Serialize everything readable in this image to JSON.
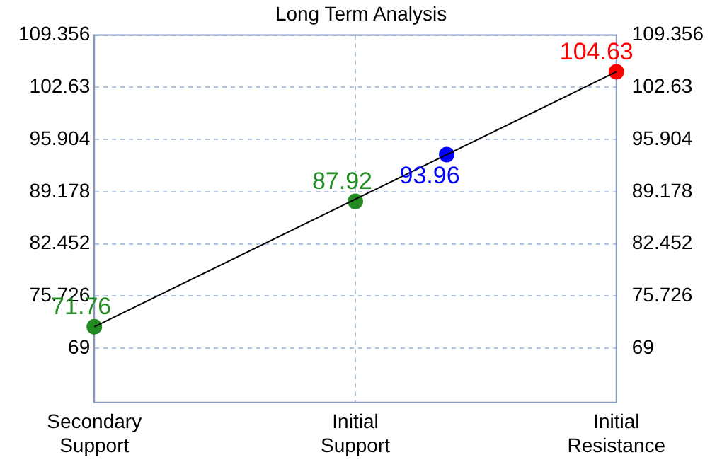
{
  "chart_data": {
    "type": "line",
    "title": "Long Term Analysis",
    "categories": [
      "Secondary Support",
      null,
      null,
      null,
      null,
      null,
      null,
      null,
      null,
      null,
      null,
      null,
      null,
      null,
      null,
      null,
      null,
      null,
      null,
      null,
      "Initial Support",
      null,
      null,
      null,
      null,
      null,
      null,
      null,
      null,
      null,
      null,
      null,
      null,
      null,
      null,
      null,
      null,
      null,
      null,
      null,
      "Initial Resistance"
    ],
    "ylim": [
      62,
      109.356
    ],
    "yticks": [
      69,
      75.726,
      82.452,
      89.178,
      95.904,
      102.63,
      109.356
    ],
    "y2lim": [
      62,
      109.356
    ],
    "y2ticks": [
      69,
      75.726,
      82.452,
      89.178,
      95.904,
      102.63,
      109.356
    ],
    "grid": true,
    "legend": false,
    "series": [
      {
        "color": "#000000",
        "values": [
          71.76,
          null,
          null,
          null,
          null,
          null,
          null,
          null,
          null,
          null,
          null,
          null,
          null,
          null,
          null,
          null,
          null,
          null,
          null,
          null,
          null,
          null,
          null,
          null,
          null,
          null,
          null,
          null,
          null,
          null,
          null,
          null,
          null,
          null,
          null,
          null,
          null,
          null,
          null,
          null,
          104.63
        ],
        "marker": "none",
        "line_style": "solid"
      },
      {
        "type": "scatter",
        "color": "#228b22",
        "values": [
          71.76,
          null,
          null,
          null,
          null,
          null,
          null,
          null,
          null,
          null,
          null,
          null,
          null,
          null,
          null,
          null,
          null,
          null,
          null,
          null,
          87.92,
          null,
          null,
          null,
          null,
          null,
          null,
          null,
          null,
          null,
          null,
          null,
          null,
          null,
          null,
          null,
          null,
          null,
          null,
          null,
          null
        ],
        "marker": "circle",
        "value_labels": [
          "71.76",
          null,
          null,
          null,
          null,
          null,
          null,
          null,
          null,
          null,
          null,
          null,
          null,
          null,
          null,
          null,
          null,
          null,
          null,
          null,
          "87.92",
          null,
          null,
          null,
          null,
          null,
          null,
          null,
          null,
          null,
          null,
          null,
          null,
          null,
          null,
          null,
          null,
          null,
          null,
          null,
          null
        ]
      },
      {
        "type": "scatter",
        "color": "#0000ff",
        "values": [
          null,
          null,
          null,
          null,
          null,
          null,
          null,
          null,
          null,
          null,
          null,
          null,
          null,
          null,
          null,
          null,
          null,
          null,
          null,
          null,
          null,
          null,
          null,
          null,
          null,
          null,
          null,
          93.96,
          null,
          null,
          null,
          null,
          null,
          null,
          null,
          null,
          null,
          null,
          null,
          null,
          null
        ],
        "marker": "circle",
        "value_labels": [
          null,
          null,
          null,
          null,
          null,
          null,
          null,
          null,
          null,
          null,
          null,
          null,
          null,
          null,
          null,
          null,
          null,
          null,
          null,
          null,
          null,
          null,
          null,
          null,
          null,
          null,
          null,
          "93.96",
          null,
          null,
          null,
          null,
          null,
          null,
          null,
          null,
          null,
          null,
          null,
          null,
          null
        ]
      },
      {
        "type": "scatter",
        "color": "#ff0000",
        "values": [
          null,
          null,
          null,
          null,
          null,
          null,
          null,
          null,
          null,
          null,
          null,
          null,
          null,
          null,
          null,
          null,
          null,
          null,
          null,
          null,
          null,
          null,
          null,
          null,
          null,
          null,
          null,
          null,
          null,
          null,
          null,
          null,
          null,
          null,
          null,
          null,
          null,
          null,
          null,
          null,
          104.63
        ],
        "marker": "circle",
        "value_labels": [
          null,
          null,
          null,
          null,
          null,
          null,
          null,
          null,
          null,
          null,
          null,
          null,
          null,
          null,
          null,
          null,
          null,
          null,
          null,
          null,
          null,
          null,
          null,
          null,
          null,
          null,
          null,
          null,
          null,
          null,
          null,
          null,
          null,
          null,
          null,
          null,
          null,
          null,
          null,
          null,
          "104.63"
        ]
      }
    ]
  }
}
